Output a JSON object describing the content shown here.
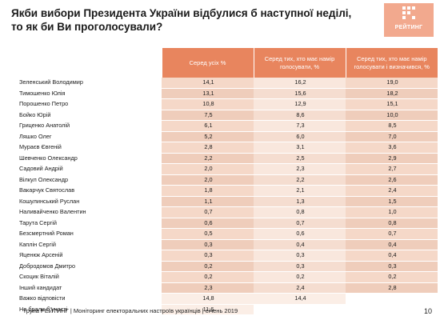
{
  "slide": {
    "title": "Якби вибори Президента України відбулися б наступної неділі, то як би Ви проголосували?",
    "logo_text": "РЕЙТИНГ",
    "footer": "група РЕЙТИНГ |  Моніторинг електоральних настроїв українців  |  січень  2019",
    "page_number": "10"
  },
  "colors": {
    "header": "#e8855e",
    "cell_light": "#f5d8c8",
    "cell_lighter": "#f9e7dd",
    "logo": "#f2a98e"
  },
  "icons": {
    "logo": "rating-logo-icon"
  },
  "table": {
    "columns": [
      "Серед усіх %",
      "Серед тих, хто має намір голосувати, %",
      "Серед тих, хто має намір голосувати і визначився, %"
    ],
    "rows": [
      {
        "name": "Зеленський Володимир",
        "all": "14,1",
        "intend": "16,2",
        "decided": "19,0"
      },
      {
        "name": "Тимошенко Юлія",
        "all": "13,1",
        "intend": "15,6",
        "decided": "18,2"
      },
      {
        "name": "Порошенко Петро",
        "all": "10,8",
        "intend": "12,9",
        "decided": "15,1"
      },
      {
        "name": "Бойко Юрій",
        "all": "7,5",
        "intend": "8,6",
        "decided": "10,0"
      },
      {
        "name": "Гриценко Анатолій",
        "all": "6,1",
        "intend": "7,3",
        "decided": "8,5"
      },
      {
        "name": "Ляшко Олег",
        "all": "5,2",
        "intend": "6,0",
        "decided": "7,0"
      },
      {
        "name": "Мураєв Євгеній",
        "all": "2,8",
        "intend": "3,1",
        "decided": "3,6"
      },
      {
        "name": "Шевченко Олександр",
        "all": "2,2",
        "intend": "2,5",
        "decided": "2,9"
      },
      {
        "name": "Садовий Андрій",
        "all": "2,0",
        "intend": "2,3",
        "decided": "2,7"
      },
      {
        "name": "Вілкул Олександр",
        "all": "2,0",
        "intend": "2,2",
        "decided": "2,6"
      },
      {
        "name": "Вакарчук Святослав",
        "all": "1,8",
        "intend": "2,1",
        "decided": "2,4"
      },
      {
        "name": "Кошулинський Руслан",
        "all": "1,1",
        "intend": "1,3",
        "decided": "1,5"
      },
      {
        "name": "Наливайченко Валентин",
        "all": "0,7",
        "intend": "0,8",
        "decided": "1,0"
      },
      {
        "name": "Тарута Сергій",
        "all": "0,6",
        "intend": "0,7",
        "decided": "0,8"
      },
      {
        "name": "Безсмертний Роман",
        "all": "0,5",
        "intend": "0,6",
        "decided": "0,7"
      },
      {
        "name": "Каплін Сергій",
        "all": "0,3",
        "intend": "0,4",
        "decided": "0,4"
      },
      {
        "name": "Яценюк Арсеній",
        "all": "0,3",
        "intend": "0,3",
        "decided": "0,4"
      },
      {
        "name": "Добродомов Дмитро",
        "all": "0,2",
        "intend": "0,3",
        "decided": "0,3"
      },
      {
        "name": "Скоцик Віталій",
        "all": "0,2",
        "intend": "0,2",
        "decided": "0,2"
      },
      {
        "name": "Інший кандидат",
        "all": "2,3",
        "intend": "2,4",
        "decided": "2,8"
      },
      {
        "name": "Важко відповісти",
        "all": "14,8",
        "intend": "14,4",
        "decided": ""
      },
      {
        "name": "Не брали б участі",
        "all": "11,6",
        "intend": "",
        "decided": ""
      }
    ]
  }
}
